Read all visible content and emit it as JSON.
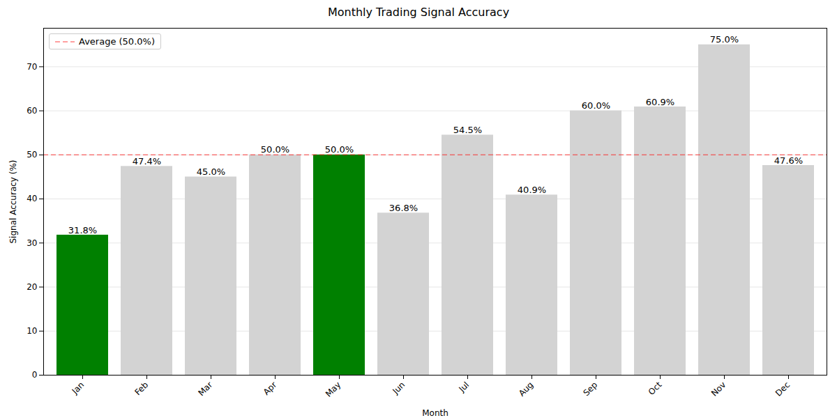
{
  "chart_data": {
    "type": "bar",
    "title": "Monthly Trading Signal Accuracy",
    "x_label": "Month",
    "y_label": "Signal Accuracy (%)",
    "categories": [
      "Jan",
      "Feb",
      "Mar",
      "Apr",
      "May",
      "Jun",
      "Jul",
      "Aug",
      "Sep",
      "Oct",
      "Nov",
      "Dec"
    ],
    "values": [
      31.8,
      47.4,
      45.0,
      50.0,
      50.0,
      36.8,
      54.5,
      40.9,
      60.0,
      60.9,
      75.0,
      47.6
    ],
    "value_labels": [
      "31.8%",
      "47.4%",
      "45.0%",
      "50.0%",
      "50.0%",
      "36.8%",
      "54.5%",
      "40.9%",
      "60.0%",
      "60.9%",
      "75.0%",
      "47.6%"
    ],
    "colors": [
      "#008000",
      "#d3d3d3",
      "#d3d3d3",
      "#d3d3d3",
      "#008000",
      "#d3d3d3",
      "#d3d3d3",
      "#d3d3d3",
      "#d3d3d3",
      "#d3d3d3",
      "#d3d3d3",
      "#d3d3d3"
    ],
    "reference_lines": [
      {
        "name": "Average (50.0%)",
        "value": 50,
        "color": "#ff0000",
        "line_style": "dashed"
      }
    ],
    "ylim": [
      0,
      78.75
    ],
    "yticks": [
      0,
      10,
      20,
      30,
      40,
      50,
      60,
      70
    ],
    "grid": true,
    "data_labels": true,
    "legend": "upper left"
  }
}
